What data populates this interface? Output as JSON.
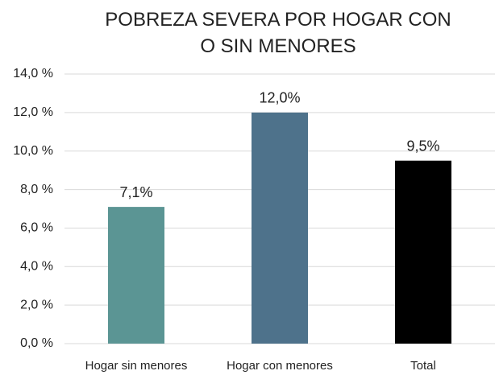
{
  "chart_data": {
    "type": "bar",
    "title": "POBREZA SEVERA POR HOGAR CON O SIN MENORES",
    "categories": [
      "Hogar sin menores",
      "Hogar con menores",
      "Total"
    ],
    "values": [
      7.1,
      12.0,
      9.5
    ],
    "value_labels": [
      "7,1%",
      "12,0%",
      "9,5%"
    ],
    "colors": [
      "#5b9594",
      "#4e728b",
      "#000000"
    ],
    "ylim": [
      0,
      14
    ],
    "yticks": [
      {
        "value": 0,
        "label": "0,0 %"
      },
      {
        "value": 2,
        "label": "2,0 %"
      },
      {
        "value": 4,
        "label": "4,0 %"
      },
      {
        "value": 6,
        "label": "6,0 %"
      },
      {
        "value": 8,
        "label": "8,0 %"
      },
      {
        "value": 10,
        "label": "10,0 %"
      },
      {
        "value": 12,
        "label": "12,0 %"
      },
      {
        "value": 14,
        "label": "14,0 %"
      }
    ],
    "grid": true
  }
}
